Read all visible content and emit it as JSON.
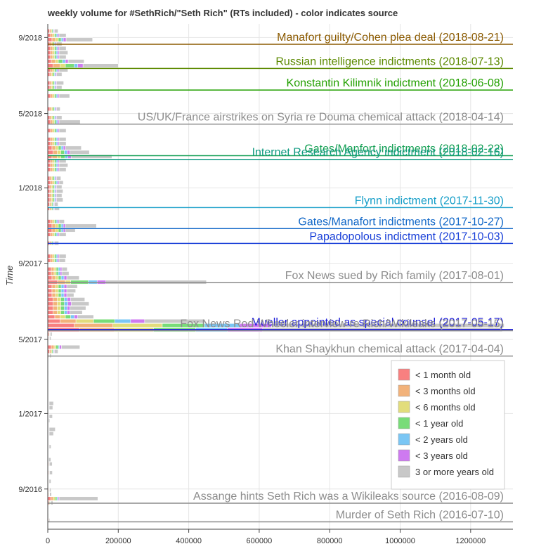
{
  "chart_data": {
    "type": "bar",
    "orientation": "horizontal-stacked",
    "title": "weekly volume for #SethRich/\"Seth Rich\" (RTs included) - color indicates source",
    "ylabel": "Time",
    "xlabel": "",
    "xlim": [
      0,
      1320000
    ],
    "x_ticks": [
      0,
      200000,
      400000,
      600000,
      800000,
      1000000,
      1200000
    ],
    "y_axis_type": "datetime",
    "ylim": [
      "2016-06-28",
      "2018-09-23"
    ],
    "y_ticks": [
      {
        "date": "2016-09-01",
        "label": "9/2016"
      },
      {
        "date": "2017-01-01",
        "label": "1/2017"
      },
      {
        "date": "2017-05-01",
        "label": "5/2017"
      },
      {
        "date": "2017-09-01",
        "label": "9/2017"
      },
      {
        "date": "2018-01-01",
        "label": "1/2018"
      },
      {
        "date": "2018-05-01",
        "label": "5/2018"
      },
      {
        "date": "2018-09-01",
        "label": "9/2018"
      }
    ],
    "grid": true,
    "legend_position": "bottom-right",
    "series": [
      {
        "name": "< 1 month old",
        "color": "#f88080"
      },
      {
        "name": "< 3 months old",
        "color": "#f2b27a"
      },
      {
        "name": "< 6 months old",
        "color": "#e2dd7c"
      },
      {
        "name": "< 1 year old",
        "color": "#78dc78"
      },
      {
        "name": "< 2 years old",
        "color": "#7ac6f4"
      },
      {
        "name": "< 3 years old",
        "color": "#ce7af0"
      },
      {
        "name": "3 or more years old",
        "color": "#c8c8c8"
      }
    ],
    "weeks": [
      {
        "date": "2016-07-12",
        "values": [
          2000,
          1000,
          500,
          500,
          300,
          200,
          2000
        ]
      },
      {
        "date": "2016-07-19",
        "values": [
          1000,
          500,
          300,
          300,
          200,
          100,
          1000
        ]
      },
      {
        "date": "2016-08-09",
        "values": [
          3000,
          2000,
          1500,
          1500,
          1000,
          500,
          5000
        ]
      },
      {
        "date": "2016-08-16",
        "values": [
          9000,
          7000,
          5000,
          5000,
          3000,
          3000,
          110000
        ]
      },
      {
        "date": "2016-08-23",
        "values": [
          2000,
          1000,
          1000,
          500,
          500,
          500,
          5000
        ]
      },
      {
        "date": "2016-08-30",
        "values": [
          2000,
          1000,
          500,
          500,
          500,
          500,
          4000
        ]
      },
      {
        "date": "2016-09-13",
        "values": [
          1000,
          1000,
          500,
          500,
          500,
          500,
          5000
        ]
      },
      {
        "date": "2016-09-27",
        "values": [
          2000,
          1000,
          500,
          500,
          500,
          500,
          8000
        ]
      },
      {
        "date": "2016-10-11",
        "values": [
          2000,
          1000,
          500,
          500,
          300,
          300,
          8000
        ]
      },
      {
        "date": "2016-10-18",
        "values": [
          1000,
          500,
          500,
          300,
          300,
          200,
          6000
        ]
      },
      {
        "date": "2016-11-08",
        "values": [
          1500,
          1000,
          500,
          500,
          300,
          300,
          5000
        ]
      },
      {
        "date": "2016-11-29",
        "values": [
          1500,
          1000,
          500,
          500,
          300,
          300,
          12000
        ]
      },
      {
        "date": "2016-12-06",
        "values": [
          1500,
          1000,
          500,
          500,
          300,
          300,
          17000
        ]
      },
      {
        "date": "2016-12-20",
        "values": [
          1000,
          500,
          300,
          300,
          200,
          200,
          3000
        ]
      },
      {
        "date": "2016-12-27",
        "values": [
          1500,
          1000,
          500,
          500,
          300,
          300,
          9000
        ]
      },
      {
        "date": "2017-01-10",
        "values": [
          1500,
          1000,
          500,
          500,
          300,
          300,
          10000
        ]
      },
      {
        "date": "2017-01-17",
        "values": [
          1500,
          1000,
          500,
          500,
          300,
          300,
          12000
        ]
      },
      {
        "date": "2017-03-07",
        "values": [
          500,
          300,
          200,
          200,
          100,
          100,
          1000
        ]
      },
      {
        "date": "2017-04-04",
        "values": [
          2000,
          1000,
          1000,
          500,
          500,
          500,
          4000
        ]
      },
      {
        "date": "2017-04-11",
        "values": [
          5000,
          4000,
          3000,
          3000,
          2000,
          2000,
          10000
        ]
      },
      {
        "date": "2017-04-18",
        "values": [
          10000,
          8000,
          5000,
          7000,
          3000,
          6000,
          52000
        ]
      },
      {
        "date": "2017-05-02",
        "values": [
          2000,
          1000,
          500,
          500,
          500,
          500,
          4000
        ]
      },
      {
        "date": "2017-05-09",
        "values": [
          3000,
          2000,
          500,
          500,
          500,
          500,
          5000
        ]
      },
      {
        "date": "2017-05-16",
        "values": [
          90000,
          100000,
          110000,
          120000,
          90000,
          100000,
          680000
        ]
      },
      {
        "date": "2017-05-23",
        "values": [
          75000,
          110000,
          140000,
          120000,
          100000,
          90000,
          660000
        ]
      },
      {
        "date": "2017-05-30",
        "values": [
          35000,
          45000,
          50000,
          60000,
          45000,
          40000,
          170000
        ]
      },
      {
        "date": "2017-06-06",
        "values": [
          20000,
          15000,
          15000,
          15000,
          10000,
          10000,
          45000
        ]
      },
      {
        "date": "2017-06-13",
        "values": [
          15000,
          12000,
          10000,
          10000,
          8000,
          8000,
          35000
        ]
      },
      {
        "date": "2017-06-20",
        "values": [
          15000,
          12000,
          10000,
          10000,
          8000,
          8000,
          45000
        ]
      },
      {
        "date": "2017-06-27",
        "values": [
          15000,
          12000,
          10000,
          10000,
          10000,
          10000,
          50000
        ]
      },
      {
        "date": "2017-07-04",
        "values": [
          15000,
          12000,
          10000,
          10000,
          8000,
          10000,
          40000
        ]
      },
      {
        "date": "2017-07-11",
        "values": [
          12000,
          10000,
          8000,
          8000,
          8000,
          8000,
          20000
        ]
      },
      {
        "date": "2017-07-18",
        "values": [
          12000,
          10000,
          8000,
          8000,
          8000,
          8000,
          25000
        ]
      },
      {
        "date": "2017-07-25",
        "values": [
          12000,
          10000,
          8000,
          8000,
          8000,
          8000,
          30000
        ]
      },
      {
        "date": "2017-08-01",
        "values": [
          28000,
          22000,
          15000,
          50000,
          25000,
          25000,
          285000
        ]
      },
      {
        "date": "2017-08-08",
        "values": [
          12000,
          10000,
          8000,
          8000,
          8000,
          8000,
          35000
        ]
      },
      {
        "date": "2017-08-15",
        "values": [
          10000,
          8000,
          6000,
          6000,
          5000,
          5000,
          20000
        ]
      },
      {
        "date": "2017-08-22",
        "values": [
          10000,
          8000,
          6000,
          6000,
          5000,
          5000,
          15000
        ]
      },
      {
        "date": "2017-09-05",
        "values": [
          8000,
          6000,
          5000,
          5000,
          4000,
          4000,
          18000
        ]
      },
      {
        "date": "2017-09-12",
        "values": [
          8000,
          6000,
          5000,
          5000,
          4000,
          4000,
          20000
        ]
      },
      {
        "date": "2017-10-03",
        "values": [
          5000,
          4000,
          3000,
          3000,
          2000,
          2000,
          12000
        ]
      },
      {
        "date": "2017-10-17",
        "values": [
          8000,
          6000,
          5000,
          5000,
          4000,
          4000,
          20000
        ]
      },
      {
        "date": "2017-10-24",
        "values": [
          12000,
          10000,
          8000,
          8000,
          6000,
          6000,
          28000
        ]
      },
      {
        "date": "2017-10-31",
        "values": [
          12000,
          10000,
          8000,
          8000,
          6000,
          6000,
          88000
        ]
      },
      {
        "date": "2017-11-07",
        "values": [
          8000,
          6000,
          5000,
          5000,
          4000,
          4000,
          15000
        ]
      },
      {
        "date": "2017-11-28",
        "values": [
          5000,
          4000,
          3000,
          3000,
          2000,
          2000,
          14000
        ]
      },
      {
        "date": "2017-12-05",
        "values": [
          5000,
          4000,
          3000,
          3000,
          2000,
          2000,
          10000
        ]
      },
      {
        "date": "2017-12-12",
        "values": [
          6000,
          5000,
          4000,
          4000,
          3000,
          3000,
          18000
        ]
      },
      {
        "date": "2017-12-19",
        "values": [
          6000,
          5000,
          4000,
          4000,
          3000,
          3000,
          15000
        ]
      },
      {
        "date": "2017-12-26",
        "values": [
          6000,
          5000,
          4000,
          4000,
          3000,
          3000,
          18000
        ]
      },
      {
        "date": "2018-01-02",
        "values": [
          6000,
          5000,
          4000,
          4000,
          3000,
          3000,
          15000
        ]
      },
      {
        "date": "2018-01-09",
        "values": [
          8000,
          6000,
          5000,
          5000,
          4000,
          4000,
          12000
        ]
      },
      {
        "date": "2018-01-16",
        "values": [
          6000,
          5000,
          4000,
          4000,
          3000,
          3000,
          12000
        ]
      },
      {
        "date": "2018-01-30",
        "values": [
          8000,
          6000,
          5000,
          5000,
          4000,
          4000,
          20000
        ]
      },
      {
        "date": "2018-02-06",
        "values": [
          8000,
          6000,
          5000,
          5000,
          4000,
          4000,
          25000
        ]
      },
      {
        "date": "2018-02-13",
        "values": [
          8000,
          6000,
          5000,
          5000,
          4000,
          4000,
          20000
        ]
      },
      {
        "date": "2018-02-20",
        "values": [
          12000,
          15000,
          10000,
          12000,
          8000,
          10000,
          115000
        ]
      },
      {
        "date": "2018-02-27",
        "values": [
          15000,
          12000,
          10000,
          10000,
          8000,
          8000,
          55000
        ]
      },
      {
        "date": "2018-03-06",
        "values": [
          12000,
          10000,
          8000,
          8000,
          6000,
          6000,
          45000
        ]
      },
      {
        "date": "2018-03-13",
        "values": [
          8000,
          6000,
          5000,
          5000,
          4000,
          4000,
          20000
        ]
      },
      {
        "date": "2018-03-20",
        "values": [
          8000,
          6000,
          5000,
          5000,
          4000,
          4000,
          20000
        ]
      },
      {
        "date": "2018-04-03",
        "values": [
          8000,
          6000,
          5000,
          5000,
          4000,
          4000,
          20000
        ]
      },
      {
        "date": "2018-04-17",
        "values": [
          8000,
          6000,
          5000,
          5000,
          4000,
          4000,
          60000
        ]
      },
      {
        "date": "2018-04-24",
        "values": [
          6000,
          5000,
          4000,
          4000,
          3000,
          3000,
          15000
        ]
      },
      {
        "date": "2018-05-08",
        "values": [
          6000,
          5000,
          4000,
          4000,
          3000,
          3000,
          10000
        ]
      },
      {
        "date": "2018-05-29",
        "values": [
          8000,
          6000,
          5000,
          5000,
          4000,
          4000,
          30000
        ]
      },
      {
        "date": "2018-06-12",
        "values": [
          6000,
          5000,
          4000,
          4000,
          3000,
          3000,
          15000
        ]
      },
      {
        "date": "2018-06-19",
        "values": [
          6000,
          5000,
          4000,
          4000,
          3000,
          3000,
          20000
        ]
      },
      {
        "date": "2018-07-03",
        "values": [
          6000,
          5000,
          4000,
          4000,
          3000,
          3000,
          15000
        ]
      },
      {
        "date": "2018-07-10",
        "values": [
          8000,
          6000,
          5000,
          5000,
          4000,
          4000,
          25000
        ]
      },
      {
        "date": "2018-07-17",
        "values": [
          15000,
          20000,
          15000,
          25000,
          10000,
          15000,
          100000
        ]
      },
      {
        "date": "2018-07-24",
        "values": [
          10000,
          12000,
          8000,
          12000,
          8000,
          8000,
          45000
        ]
      },
      {
        "date": "2018-07-31",
        "values": [
          8000,
          6000,
          5000,
          5000,
          4000,
          4000,
          20000
        ]
      },
      {
        "date": "2018-08-07",
        "values": [
          8000,
          6000,
          5000,
          5000,
          4000,
          4000,
          25000
        ]
      },
      {
        "date": "2018-08-14",
        "values": [
          8000,
          6000,
          5000,
          5000,
          4000,
          4000,
          20000
        ]
      },
      {
        "date": "2018-08-21",
        "values": [
          6000,
          5000,
          4000,
          4000,
          3000,
          3000,
          15000
        ]
      },
      {
        "date": "2018-08-28",
        "values": [
          12000,
          10000,
          8000,
          8000,
          6000,
          8000,
          75000
        ]
      },
      {
        "date": "2018-09-04",
        "values": [
          8000,
          6000,
          5000,
          5000,
          4000,
          4000,
          20000
        ]
      },
      {
        "date": "2018-09-11",
        "values": [
          5000,
          4000,
          3000,
          3000,
          2000,
          2000,
          10000
        ]
      }
    ],
    "events": [
      {
        "label": "Manafort guilty/Cohen plea deal (2018-08-21)",
        "date": "2018-08-21",
        "color": "#8b5a00"
      },
      {
        "label": "Russian intelligence indictments (2018-07-13)",
        "date": "2018-07-13",
        "color": "#5c8a00"
      },
      {
        "label": "Konstantin Kilimnik indictment (2018-06-08)",
        "date": "2018-06-08",
        "color": "#22a000"
      },
      {
        "label": "US/UK/France airstrikes on Syria re Douma chemical attack (2018-04-14)",
        "date": "2018-04-14",
        "color": "#8c8c8c"
      },
      {
        "label": "Gates/Manfort indictments (2018-02-22)",
        "date": "2018-02-22",
        "color": "#16a055"
      },
      {
        "label": "Internet Research Agency indictment (2018-02-16)",
        "date": "2018-02-16",
        "color": "#0f9a80"
      },
      {
        "label": "Flynn indictment (2017-11-30)",
        "date": "2017-11-30",
        "color": "#159ec8"
      },
      {
        "label": "Gates/Manafort indictments (2017-10-27)",
        "date": "2017-10-27",
        "color": "#1268c8"
      },
      {
        "label": "Papadopolous indictment (2017-10-03)",
        "date": "2017-10-03",
        "color": "#1a40d8"
      },
      {
        "label": "Fox News sued by Rich family (2017-08-01)",
        "date": "2017-08-01",
        "color": "#8c8c8c"
      },
      {
        "label": "Mueller appointed as special counsel (2017-05-17)",
        "date": "2017-05-17",
        "color": "#1a1ad8"
      },
      {
        "label": "Fox News Rod Wheeler interview re Rich/Wikileaks (2017-05-15)",
        "date": "2017-05-15",
        "color": "#8c8c8c"
      },
      {
        "label": "Khan Shaykhun chemical attack (2017-04-04)",
        "date": "2017-04-04",
        "color": "#8c8c8c"
      },
      {
        "label": "Assange hints Seth Rich was a Wikileaks source (2016-08-09)",
        "date": "2016-08-09",
        "color": "#8c8c8c"
      },
      {
        "label": "Murder of Seth Rich (2016-07-10)",
        "date": "2016-07-10",
        "color": "#8c8c8c"
      }
    ]
  }
}
